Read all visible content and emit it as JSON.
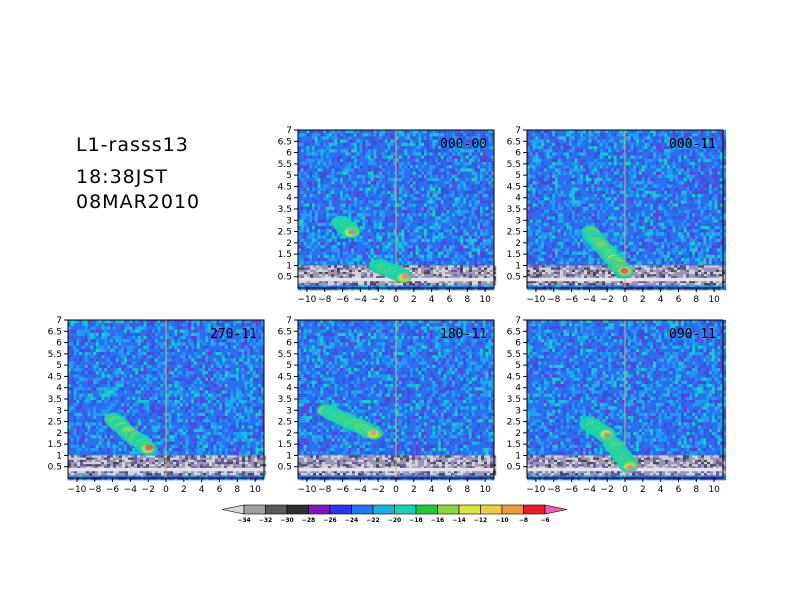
{
  "header": {
    "line1": "L1-rasss13",
    "line2": "18:38JST",
    "line3": "08MAR2010"
  },
  "chart_data": [
    {
      "type": "heatmap",
      "panel_label": "000-00",
      "xlim": [
        -11,
        11
      ],
      "ylim": [
        0,
        7
      ],
      "x_ticks": [
        -10,
        -8,
        -6,
        -4,
        -2,
        0,
        2,
        4,
        6,
        8,
        10
      ],
      "y_ticks": [
        0.5,
        1,
        1.5,
        2,
        2.5,
        3,
        3.5,
        4,
        4.5,
        5,
        5.5,
        6,
        6.5,
        7
      ],
      "features": [
        {
          "x": [
            -6.2,
            -5
          ],
          "y": [
            2.5,
            2.9
          ],
          "level": -20
        },
        {
          "x": [
            -2,
            1
          ],
          "y": [
            0.5,
            1.0
          ],
          "level": -6
        }
      ]
    },
    {
      "type": "heatmap",
      "panel_label": "000-11",
      "xlim": [
        -11,
        11
      ],
      "ylim": [
        0,
        7
      ],
      "x_ticks": [
        -10,
        -8,
        -6,
        -4,
        -2,
        0,
        2,
        4,
        6,
        8,
        10
      ],
      "y_ticks": [
        0.5,
        1,
        1.5,
        2,
        2.5,
        3,
        3.5,
        4,
        4.5,
        5,
        5.5,
        6,
        6.5,
        7
      ],
      "features": [
        {
          "x": [
            -4,
            0
          ],
          "y": [
            0.7,
            2.5
          ],
          "level": -8
        }
      ]
    },
    {
      "type": "heatmap",
      "panel_label": "270-11",
      "xlim": [
        -11,
        11
      ],
      "ylim": [
        0,
        7
      ],
      "x_ticks": [
        -10,
        -8,
        -6,
        -4,
        -2,
        0,
        2,
        4,
        6,
        8,
        10
      ],
      "y_ticks": [
        0.5,
        1,
        1.5,
        2,
        2.5,
        3,
        3.5,
        4,
        4.5,
        5,
        5.5,
        6,
        6.5,
        7
      ],
      "features": [
        {
          "x": [
            -6,
            -2
          ],
          "y": [
            1.3,
            2.6
          ],
          "level": -8
        }
      ]
    },
    {
      "type": "heatmap",
      "panel_label": "180-11",
      "xlim": [
        -11,
        11
      ],
      "ylim": [
        0,
        7
      ],
      "x_ticks": [
        -10,
        -8,
        -6,
        -4,
        -2,
        0,
        2,
        4,
        6,
        8,
        10
      ],
      "y_ticks": [
        0.5,
        1,
        1.5,
        2,
        2.5,
        3,
        3.5,
        4,
        4.5,
        5,
        5.5,
        6,
        6.5,
        7
      ],
      "features": [
        {
          "x": [
            -8,
            -2.5
          ],
          "y": [
            2.0,
            3.0
          ],
          "level": -12
        }
      ]
    },
    {
      "type": "heatmap",
      "panel_label": "090-11",
      "xlim": [
        -11,
        11
      ],
      "ylim": [
        0,
        7
      ],
      "x_ticks": [
        -10,
        -8,
        -6,
        -4,
        -2,
        0,
        2,
        4,
        6,
        8,
        10
      ],
      "y_ticks": [
        0.5,
        1,
        1.5,
        2,
        2.5,
        3,
        3.5,
        4,
        4.5,
        5,
        5.5,
        6,
        6.5,
        7
      ],
      "features": [
        {
          "x": [
            -1.5,
            0.5
          ],
          "y": [
            0.5,
            1.6
          ],
          "level": -6
        },
        {
          "x": [
            -4,
            -2
          ],
          "y": [
            1.9,
            2.4
          ],
          "level": -18
        }
      ]
    }
  ],
  "colorbar": {
    "labels": [
      "-34",
      "-32",
      "-30",
      "-28",
      "-26",
      "-24",
      "-22",
      "-20",
      "-18",
      "-16",
      "-14",
      "-12",
      "-10",
      "-8",
      "-6"
    ],
    "colors": [
      "#d7d7d7",
      "#a0a0a0",
      "#5a5a5a",
      "#2e2e2e",
      "#7a18c8",
      "#2c36f0",
      "#1e78f4",
      "#16b2e0",
      "#14d4b4",
      "#1cca3c",
      "#8cd63a",
      "#dce63a",
      "#f0cc3c",
      "#ee9a3a",
      "#ec1c24",
      "#f05ab4"
    ]
  }
}
